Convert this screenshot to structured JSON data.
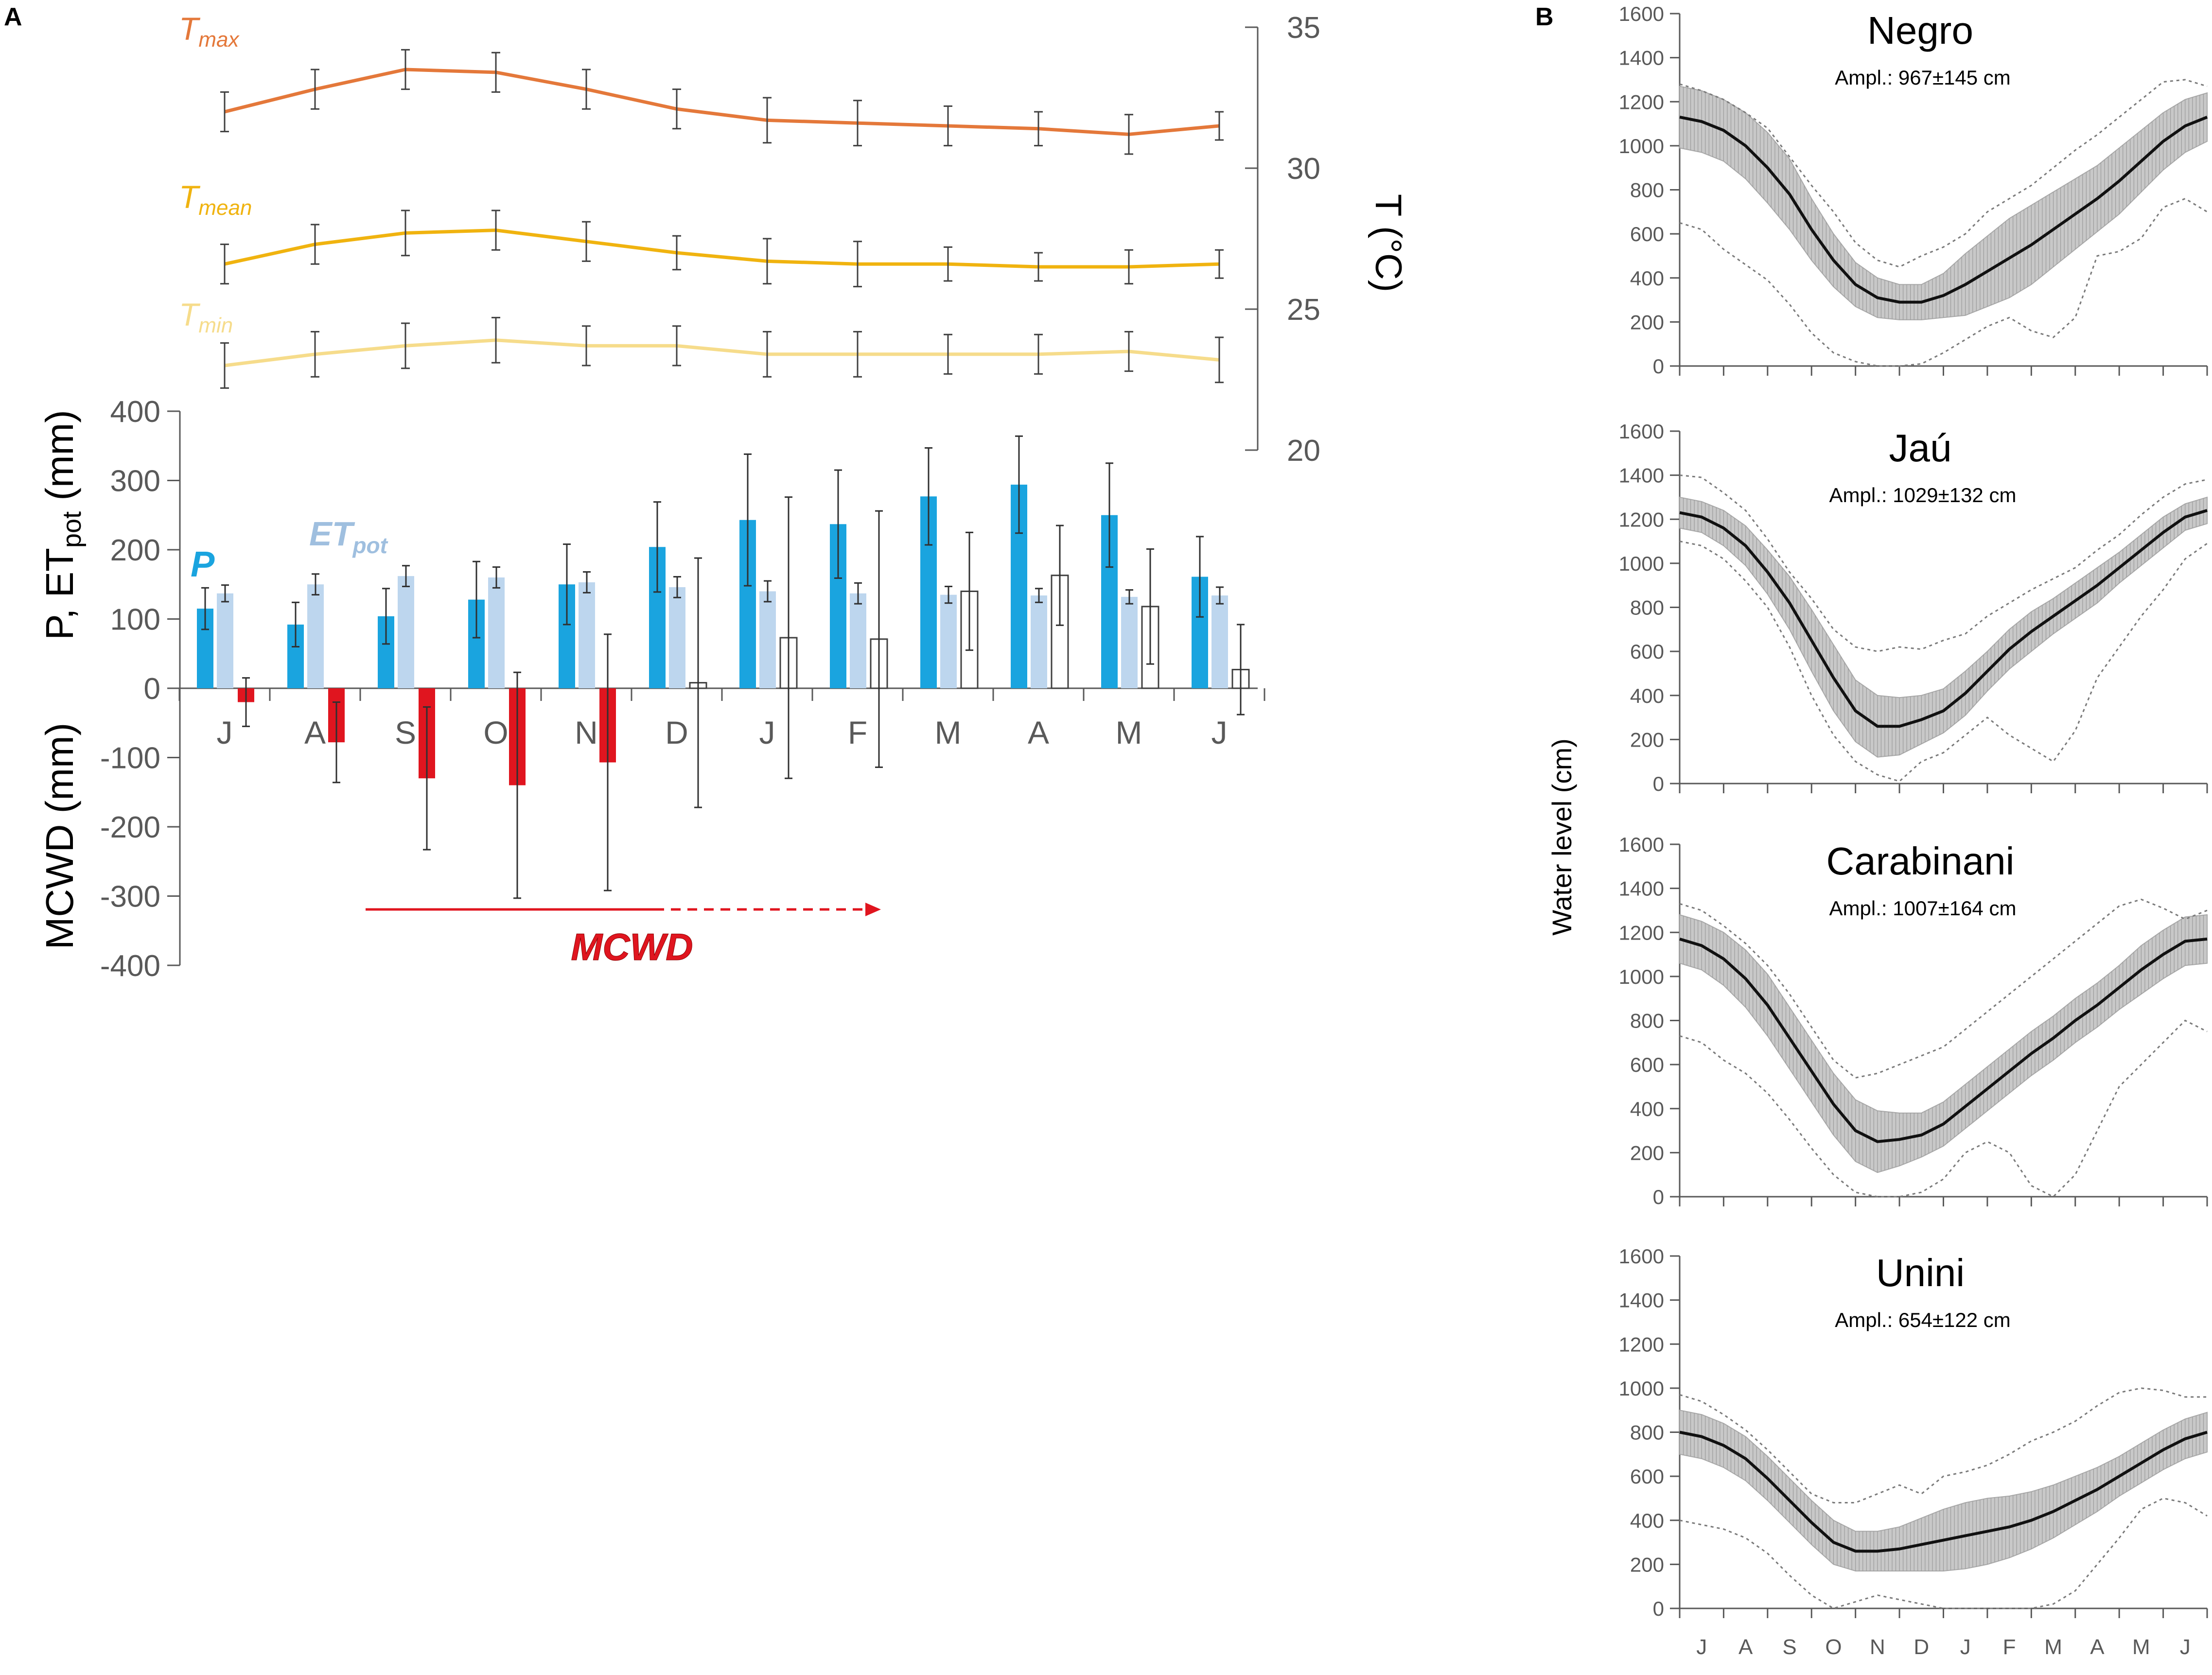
{
  "panels": {
    "a_letter": "A",
    "b_letter": "B"
  },
  "colors": {
    "tmax": "#E4783A",
    "tmean": "#F0B30F",
    "tmin": "#F6DC8B",
    "p": "#1AA4DF",
    "et": "#BDD6EE",
    "mcwd": "#E0151F",
    "axis": "#595959"
  },
  "chart_data": [
    {
      "type": "line",
      "panel": "A (top)",
      "categories": [
        "J",
        "A",
        "S",
        "O",
        "N",
        "D",
        "J",
        "F",
        "M",
        "A",
        "M",
        "J"
      ],
      "ylabel": "T (°C)",
      "ylim": [
        20,
        35
      ],
      "yticks": [
        "20",
        "25",
        "30",
        "35"
      ],
      "series": [
        {
          "name": "Tmax",
          "label_main": "T",
          "label_sub": "max",
          "color": "#E4783A",
          "values": [
            32.0,
            32.8,
            33.5,
            33.4,
            32.8,
            32.1,
            31.7,
            31.6,
            31.5,
            31.4,
            31.2,
            31.5
          ],
          "errors": [
            0.7,
            0.7,
            0.7,
            0.7,
            0.7,
            0.7,
            0.8,
            0.8,
            0.7,
            0.6,
            0.7,
            0.5
          ]
        },
        {
          "name": "Tmean",
          "label_main": "T",
          "label_sub": "mean",
          "color": "#F0B30F",
          "values": [
            26.6,
            27.3,
            27.7,
            27.8,
            27.4,
            27.0,
            26.7,
            26.6,
            26.6,
            26.5,
            26.5,
            26.6
          ],
          "errors": [
            0.7,
            0.7,
            0.8,
            0.7,
            0.7,
            0.6,
            0.8,
            0.8,
            0.6,
            0.5,
            0.6,
            0.5
          ]
        },
        {
          "name": "Tmin",
          "label_main": "T",
          "label_sub": "min",
          "color": "#F6DC8B",
          "values": [
            23.0,
            23.4,
            23.7,
            23.9,
            23.7,
            23.7,
            23.4,
            23.4,
            23.4,
            23.4,
            23.5,
            23.2
          ],
          "errors": [
            0.8,
            0.8,
            0.8,
            0.8,
            0.7,
            0.7,
            0.8,
            0.8,
            0.7,
            0.7,
            0.7,
            0.8
          ]
        }
      ]
    },
    {
      "type": "bar",
      "panel": "A (bottom)",
      "categories": [
        "J",
        "A",
        "S",
        "O",
        "N",
        "D",
        "J",
        "F",
        "M",
        "A",
        "M",
        "J"
      ],
      "ylabel_top": "P, ET",
      "ylabel_top_sub": "pot",
      "ylabel_top_unit": " (mm)",
      "ylabel_bottom": "MCWD (mm)",
      "ylim": [
        -400,
        400
      ],
      "yticks": [
        "-400",
        "-300",
        "-200",
        "-100",
        "0",
        "100",
        "200",
        "300",
        "400"
      ],
      "series": [
        {
          "name": "P",
          "label": "P",
          "color": "#1AA4DF",
          "values": [
            115,
            92,
            104,
            128,
            150,
            204,
            243,
            237,
            277,
            294,
            250,
            161
          ],
          "errors": [
            30,
            32,
            40,
            55,
            58,
            65,
            95,
            78,
            70,
            70,
            75,
            58
          ]
        },
        {
          "name": "ETpot",
          "label_main": "ET",
          "label_sub": "pot",
          "color": "#BDD6EE",
          "values": [
            137,
            150,
            162,
            160,
            153,
            146,
            140,
            137,
            135,
            134,
            132,
            134
          ],
          "errors": [
            12,
            15,
            15,
            15,
            15,
            15,
            15,
            15,
            12,
            10,
            10,
            12
          ]
        },
        {
          "name": "MCWD",
          "label": "MCWD",
          "color": "#E0151F",
          "values": [
            -20,
            -78,
            -130,
            -140,
            -107,
            8,
            73,
            71,
            140,
            163,
            118,
            27
          ],
          "errors": [
            35,
            58,
            103,
            163,
            185,
            180,
            203,
            185,
            85,
            72,
            83,
            65
          ]
        }
      ]
    },
    {
      "type": "area",
      "panel": "B",
      "categories": [
        "J",
        "A",
        "S",
        "O",
        "N",
        "D",
        "J",
        "F",
        "M",
        "A",
        "M",
        "J"
      ],
      "ylabel": "Water level (cm)",
      "ylim": [
        0,
        1600
      ],
      "yticks": [
        "0",
        "200",
        "400",
        "600",
        "800",
        "1000",
        "1200",
        "1400",
        "1600"
      ],
      "rivers": [
        {
          "name": "Negro",
          "ampl": "Ampl.: 967±145 cm",
          "mean": [
            1130,
            1110,
            1070,
            1000,
            900,
            780,
            620,
            480,
            370,
            310,
            290,
            290,
            320,
            370,
            430,
            490,
            550,
            620,
            690,
            760,
            840,
            930,
            1020,
            1090,
            1130
          ],
          "sd": [
            140,
            140,
            140,
            150,
            160,
            160,
            140,
            120,
            100,
            90,
            80,
            80,
            100,
            140,
            160,
            180,
            180,
            170,
            160,
            150,
            150,
            140,
            130,
            120,
            110
          ],
          "max": [
            1280,
            1250,
            1210,
            1150,
            1080,
            950,
            820,
            700,
            560,
            480,
            450,
            500,
            540,
            600,
            700,
            760,
            820,
            900,
            980,
            1050,
            1130,
            1210,
            1290,
            1300,
            1270
          ],
          "min": [
            650,
            620,
            530,
            460,
            390,
            280,
            150,
            60,
            20,
            0,
            0,
            10,
            60,
            120,
            180,
            220,
            160,
            130,
            220,
            500,
            520,
            580,
            720,
            760,
            700
          ]
        },
        {
          "name": "Jaú",
          "ampl": "Ampl.: 1029±132 cm",
          "mean": [
            1230,
            1210,
            1160,
            1080,
            960,
            820,
            650,
            480,
            330,
            260,
            260,
            290,
            330,
            410,
            510,
            610,
            690,
            760,
            830,
            900,
            980,
            1060,
            1140,
            1210,
            1240
          ],
          "sd": [
            70,
            70,
            80,
            90,
            100,
            120,
            140,
            150,
            140,
            140,
            130,
            110,
            100,
            100,
            90,
            90,
            90,
            80,
            80,
            80,
            70,
            70,
            70,
            60,
            60
          ],
          "max": [
            1400,
            1390,
            1320,
            1240,
            1110,
            960,
            840,
            700,
            620,
            600,
            620,
            610,
            650,
            680,
            760,
            820,
            880,
            930,
            980,
            1060,
            1130,
            1220,
            1300,
            1360,
            1380
          ],
          "min": [
            1100,
            1080,
            1020,
            920,
            800,
            620,
            400,
            220,
            100,
            40,
            10,
            100,
            140,
            220,
            300,
            220,
            160,
            100,
            240,
            480,
            620,
            760,
            880,
            1020,
            1090
          ]
        },
        {
          "name": "Carabinani",
          "ampl": "Ampl.: 1007±164 cm",
          "mean": [
            1170,
            1140,
            1080,
            990,
            870,
            720,
            570,
            420,
            300,
            250,
            260,
            280,
            330,
            410,
            490,
            570,
            650,
            720,
            800,
            870,
            950,
            1030,
            1100,
            1160,
            1170
          ],
          "sd": [
            110,
            110,
            120,
            130,
            140,
            140,
            140,
            140,
            140,
            140,
            120,
            100,
            100,
            100,
            100,
            100,
            100,
            100,
            100,
            100,
            100,
            110,
            110,
            110,
            110
          ],
          "max": [
            1330,
            1300,
            1230,
            1150,
            1050,
            920,
            770,
            620,
            540,
            560,
            600,
            640,
            680,
            760,
            840,
            920,
            1000,
            1080,
            1160,
            1240,
            1320,
            1350,
            1310,
            1260,
            1300
          ],
          "min": [
            730,
            700,
            620,
            560,
            470,
            350,
            220,
            100,
            20,
            0,
            0,
            20,
            80,
            200,
            250,
            200,
            50,
            0,
            100,
            300,
            500,
            600,
            700,
            800,
            750
          ]
        },
        {
          "name": "Unini",
          "ampl": "Ampl.: 654±122 cm",
          "mean": [
            800,
            780,
            740,
            680,
            590,
            490,
            390,
            300,
            260,
            260,
            270,
            290,
            310,
            330,
            350,
            370,
            400,
            440,
            490,
            540,
            600,
            660,
            720,
            770,
            800
          ],
          "sd": [
            100,
            100,
            100,
            100,
            100,
            100,
            100,
            100,
            90,
            90,
            100,
            120,
            140,
            150,
            150,
            140,
            130,
            120,
            110,
            100,
            90,
            90,
            90,
            90,
            90
          ],
          "max": [
            970,
            940,
            880,
            810,
            720,
            620,
            520,
            480,
            480,
            520,
            560,
            520,
            600,
            620,
            650,
            700,
            760,
            800,
            850,
            920,
            980,
            1000,
            990,
            960,
            960
          ],
          "min": [
            400,
            380,
            360,
            320,
            250,
            150,
            60,
            0,
            30,
            60,
            40,
            20,
            0,
            0,
            0,
            0,
            0,
            20,
            80,
            200,
            320,
            450,
            500,
            480,
            420
          ]
        }
      ]
    }
  ],
  "mcwd_arrow_label": "MCWD"
}
